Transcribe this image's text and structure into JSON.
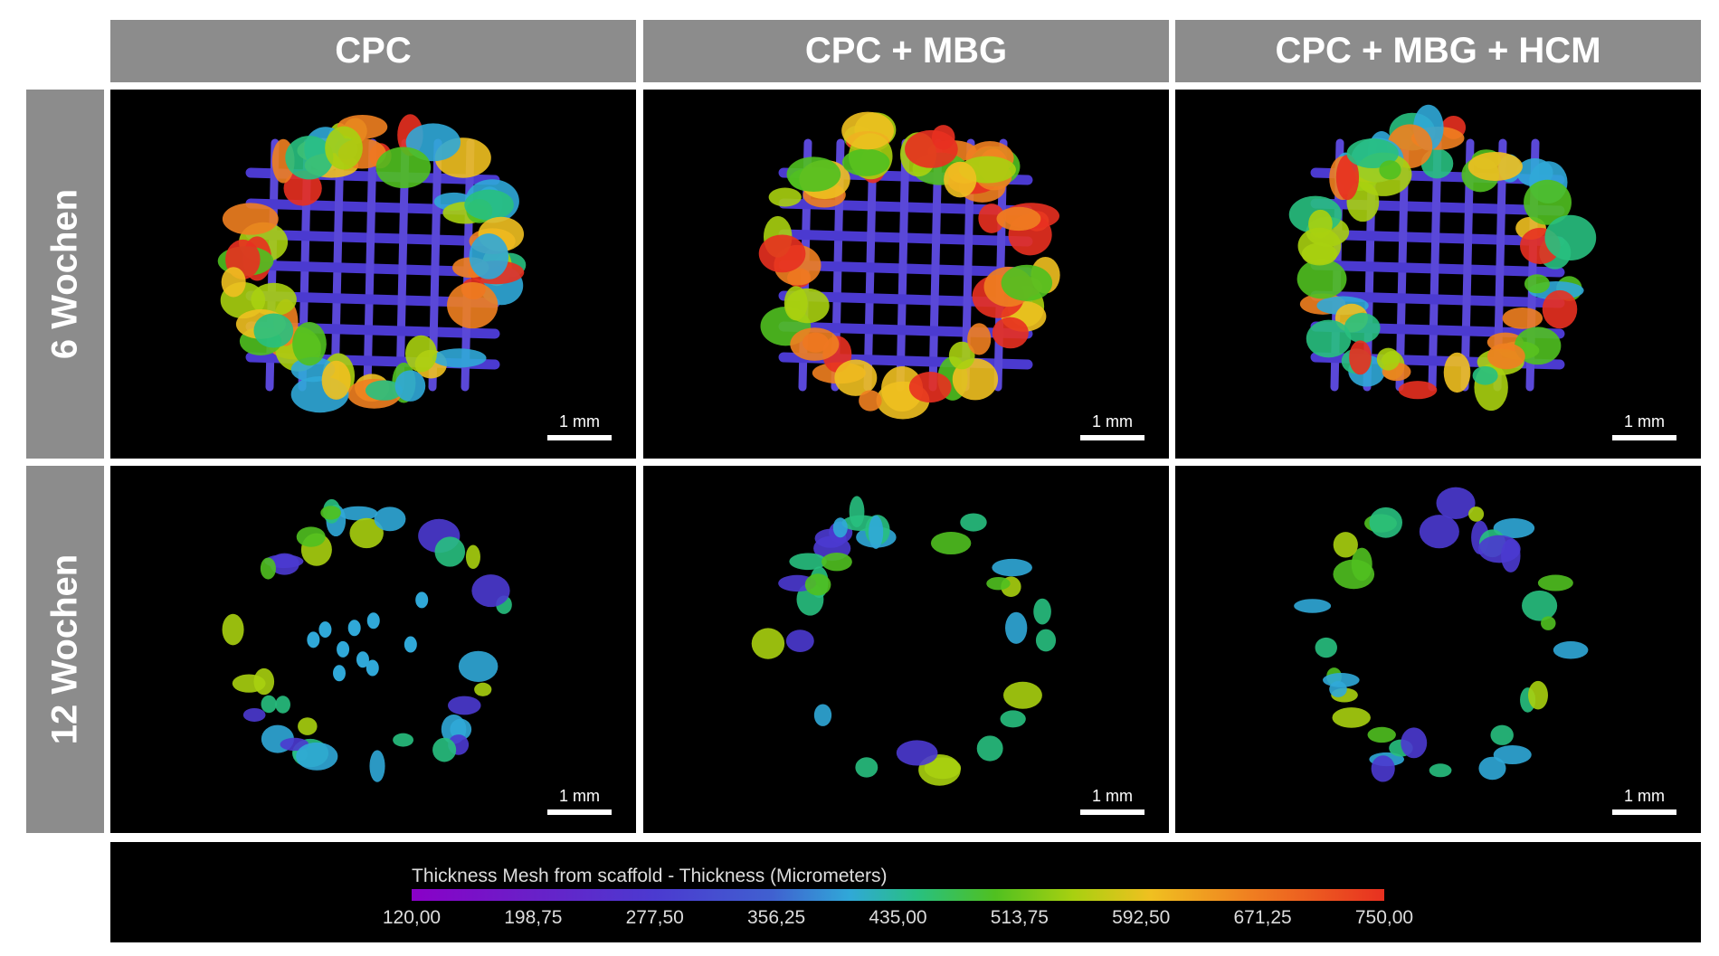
{
  "column_headers": [
    "CPC",
    "CPC + MBG",
    "CPC + MBG + HCM"
  ],
  "row_labels": [
    "6 Wochen",
    "12 Wochen"
  ],
  "scale_bar_label": "1 mm",
  "colorbar": {
    "title": "Thickness Mesh from scaffold - Thickness (Micrometers)",
    "ticks": [
      "120,00",
      "198,75",
      "277,50",
      "356,25",
      "435,00",
      "513,75",
      "592,50",
      "671,25",
      "750,00"
    ]
  }
}
